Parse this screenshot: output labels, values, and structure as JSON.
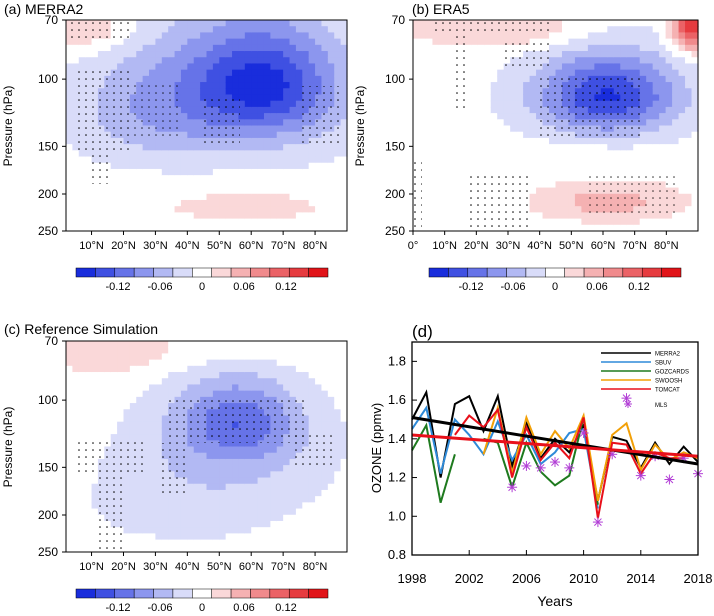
{
  "chart_data": [
    {
      "type": "heatmap",
      "title": "(a) MERRA2",
      "ylabel": "Pressure (hPa)",
      "yticks": [
        "70",
        "100",
        "150",
        "200",
        "250"
      ],
      "xticks": [
        "10°N",
        "20°N",
        "30°N",
        "40°N",
        "50°N",
        "60°N",
        "70°N",
        "80°N"
      ],
      "colorbar_labels": [
        "-0.12",
        "-0.06",
        "0",
        "0.06",
        "0.12"
      ],
      "clim": [
        -0.18,
        0.18
      ],
      "blobs": [
        {
          "x": 64,
          "y": 102,
          "rx": 22,
          "ry": 32,
          "v": -0.12
        },
        {
          "x": 55,
          "y": 112,
          "rx": 38,
          "ry": 52,
          "v": -0.07
        },
        {
          "x": 26,
          "y": 120,
          "rx": 22,
          "ry": 40,
          "v": -0.04
        },
        {
          "x": 10,
          "y": 74,
          "rx": 14,
          "ry": 10,
          "v": 0.05
        },
        {
          "x": 58,
          "y": 215,
          "rx": 32,
          "ry": 28,
          "v": 0.025
        }
      ]
    },
    {
      "type": "heatmap",
      "title": "(b) ERA5",
      "ylabel": "Pressure (hPa)",
      "yticks": [
        "70",
        "100",
        "150",
        "200",
        "250"
      ],
      "xticks": [
        "0°",
        "10°N",
        "20°N",
        "30°N",
        "40°N",
        "50°N",
        "60°N",
        "70°N",
        "80°N"
      ],
      "colorbar_labels": [
        "-0.12",
        "-0.06",
        "0",
        "0.06",
        "0.12"
      ],
      "clim": [
        -0.18,
        0.18
      ],
      "blobs": [
        {
          "x": 62,
          "y": 110,
          "rx": 20,
          "ry": 24,
          "v": -0.11
        },
        {
          "x": 60,
          "y": 112,
          "rx": 28,
          "ry": 34,
          "v": -0.06
        },
        {
          "x": 88,
          "y": 74,
          "rx": 6,
          "ry": 10,
          "v": 0.16
        },
        {
          "x": 30,
          "y": 74,
          "rx": 28,
          "ry": 9,
          "v": 0.05
        },
        {
          "x": 62,
          "y": 210,
          "rx": 22,
          "ry": 24,
          "v": 0.06
        },
        {
          "x": 40,
          "y": 158,
          "rx": 34,
          "ry": 12,
          "v": 0.015
        }
      ]
    },
    {
      "type": "heatmap",
      "title": "(c) Reference Simulation",
      "ylabel": "Pressure (hPa)",
      "yticks": [
        "70",
        "100",
        "150",
        "200",
        "250"
      ],
      "xticks": [
        "10°N",
        "20°N",
        "30°N",
        "40°N",
        "50°N",
        "60°N",
        "70°N",
        "80°N"
      ],
      "colorbar_labels": [
        "-0.12",
        "-0.06",
        "0",
        "0.06",
        "0.12"
      ],
      "clim": [
        -0.18,
        0.18
      ],
      "blobs": [
        {
          "x": 56,
          "y": 112,
          "rx": 18,
          "ry": 26,
          "v": -0.09
        },
        {
          "x": 54,
          "y": 132,
          "rx": 30,
          "ry": 44,
          "v": -0.05
        },
        {
          "x": 40,
          "y": 190,
          "rx": 38,
          "ry": 56,
          "v": -0.025
        },
        {
          "x": 15,
          "y": 74,
          "rx": 18,
          "ry": 12,
          "v": 0.04
        },
        {
          "x": 55,
          "y": 74,
          "rx": 38,
          "ry": 8,
          "v": 0.015
        }
      ]
    },
    {
      "type": "line",
      "title": "(d)",
      "xlabel": "Years",
      "ylabel": "OZONE (ppmv)",
      "xlim": [
        1998,
        2018
      ],
      "ylim": [
        0.8,
        1.9
      ],
      "xticks": [
        "1998",
        "2002",
        "2006",
        "2010",
        "2014",
        "2018"
      ],
      "yticks": [
        "0.8",
        "1.0",
        "1.2",
        "1.4",
        "1.6",
        "1.8"
      ],
      "legend_position": "top-right",
      "series": [
        {
          "name": "MERRA2",
          "color": "#000000",
          "x": [
            1998,
            1999,
            2000,
            2001,
            2002,
            2003,
            2004,
            2005,
            2006,
            2007,
            2008,
            2009,
            2010,
            2011,
            2012,
            2013,
            2014,
            2015,
            2016,
            2017,
            2018
          ],
          "values": [
            1.5,
            1.64,
            1.2,
            1.58,
            1.62,
            1.44,
            1.62,
            1.26,
            1.48,
            1.3,
            1.4,
            1.33,
            1.47,
            1.08,
            1.41,
            1.39,
            1.25,
            1.38,
            1.27,
            1.36,
            1.28
          ]
        },
        {
          "name": "SBUV",
          "color": "#2e8ad8",
          "x": [
            1998,
            1999,
            2000,
            2001,
            2002,
            2003,
            2004,
            2005,
            2006,
            2007,
            2008,
            2009,
            2010,
            2011
          ],
          "values": [
            1.45,
            1.56,
            1.22,
            1.5,
            1.42,
            1.32,
            1.49,
            1.29,
            1.42,
            1.27,
            1.33,
            1.43,
            1.45,
            1.04
          ]
        },
        {
          "name": "GOZCARDS",
          "color": "#1e7a1e",
          "x": [
            1998,
            1999,
            2000,
            2001,
            null,
            2003,
            2004,
            2005,
            2006,
            2007,
            2008,
            2009,
            2010,
            2011
          ],
          "values": [
            1.34,
            1.47,
            1.07,
            1.32,
            null,
            1.4,
            1.38,
            1.15,
            1.38,
            1.23,
            1.16,
            1.21,
            1.51,
            1.06
          ]
        },
        {
          "name": "SWOOSH",
          "color": "#f2a007",
          "x": [
            2003,
            2004,
            2005,
            2006,
            2007,
            2008,
            2009,
            2010,
            2011,
            2012,
            2013,
            2014,
            2015,
            2016,
            2017,
            2018
          ],
          "values": [
            1.32,
            1.56,
            1.22,
            1.51,
            1.32,
            1.44,
            1.35,
            1.52,
            1.08,
            1.42,
            1.48,
            1.24,
            1.37,
            1.29,
            1.33,
            1.3
          ]
        },
        {
          "name": "TOMCAT",
          "color": "#e8101a",
          "x": [
            2001,
            2002,
            2003,
            2004,
            2005,
            2006,
            2007,
            2008,
            2009,
            2010,
            2011,
            2012,
            2013,
            2014,
            2015,
            2016,
            2017
          ],
          "values": [
            1.42,
            1.52,
            1.46,
            1.55,
            1.2,
            1.46,
            1.29,
            1.38,
            1.3,
            1.51,
            0.99,
            1.38,
            1.37,
            1.22,
            1.33,
            1.3,
            1.3
          ]
        },
        {
          "name": "MLS",
          "color": "#b23fd6",
          "marker": "asterisk",
          "x": [
            2005,
            2006,
            2007,
            2008,
            2009,
            2010,
            2011,
            2012,
            2013,
            2014,
            2015,
            2016,
            2017,
            2018
          ],
          "values": [
            1.15,
            1.26,
            1.25,
            1.28,
            1.25,
            1.43,
            0.97,
            1.32,
            1.61,
            1.21,
            1.31,
            1.19,
            1.3,
            1.22
          ]
        }
      ],
      "trends": [
        {
          "color": "#000000",
          "from": [
            1998,
            1.51
          ],
          "to": [
            2018,
            1.27
          ]
        },
        {
          "color": "#e8101a",
          "from": [
            1998,
            1.42
          ],
          "to": [
            2018,
            1.31
          ]
        }
      ]
    }
  ]
}
